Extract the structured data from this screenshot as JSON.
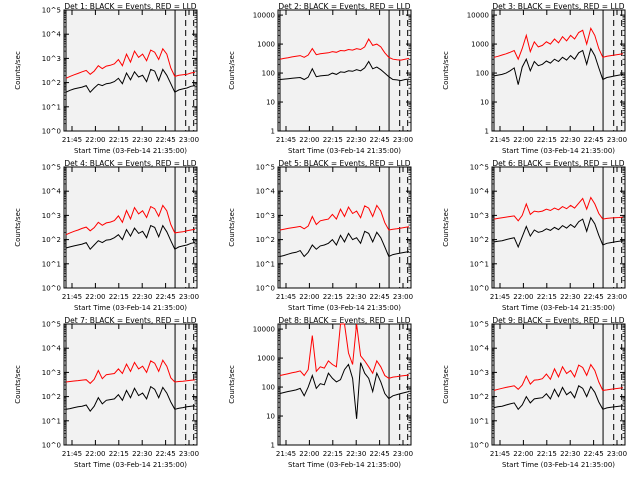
{
  "chart_data": [
    {
      "type": "line",
      "title": "Det 1: BLACK = Events, RED = LLD",
      "ylabel": "Counts/sec",
      "xlabel": "Start Time (03-Feb-14 21:35:00)",
      "xticks": [
        "21:45",
        "22:00",
        "22:15",
        "22:30",
        "22:45",
        "23:00"
      ],
      "yticks": [
        "10^0",
        "10^1",
        "10^2",
        "10^3",
        "10^4",
        "10^5"
      ],
      "ylim": [
        1,
        100000
      ],
      "yscale": "log",
      "series": [
        {
          "name": "Events",
          "color": "#000000",
          "values": [
            40,
            48,
            55,
            60,
            65,
            75,
            40,
            60,
            85,
            75,
            90,
            95,
            110,
            150,
            90,
            250,
            130,
            280,
            170,
            200,
            110,
            350,
            300,
            120,
            350,
            200,
            90,
            40,
            50,
            55,
            60,
            70,
            75
          ]
        },
        {
          "name": "LLD",
          "color": "#ff0000",
          "values": [
            150,
            180,
            210,
            240,
            280,
            320,
            220,
            300,
            500,
            380,
            480,
            520,
            600,
            900,
            500,
            1500,
            700,
            2000,
            1100,
            1500,
            800,
            2200,
            1800,
            900,
            2500,
            1500,
            400,
            180,
            200,
            210,
            220,
            250,
            270
          ]
        }
      ]
    },
    {
      "type": "line",
      "title": "Det 2: BLACK = Events, RED = LLD",
      "ylabel": "Counts/sec",
      "xlabel": "Start Time (03-Feb-14 21:35:00)",
      "xticks": [
        "21:45",
        "22:00",
        "22:15",
        "22:30",
        "22:45",
        "23:00"
      ],
      "yticks": [
        "1",
        "10",
        "100",
        "1000",
        "10000"
      ],
      "ylim": [
        1,
        15000
      ],
      "yscale": "log",
      "series": [
        {
          "name": "Events",
          "color": "#000000",
          "values": [
            60,
            62,
            64,
            66,
            68,
            70,
            60,
            72,
            140,
            75,
            80,
            82,
            85,
            100,
            90,
            110,
            105,
            120,
            115,
            130,
            120,
            150,
            250,
            140,
            160,
            130,
            100,
            75,
            60,
            58,
            55,
            60,
            62
          ]
        },
        {
          "name": "LLD",
          "color": "#ff0000",
          "values": [
            300,
            320,
            340,
            360,
            380,
            400,
            350,
            420,
            700,
            430,
            460,
            480,
            500,
            550,
            520,
            600,
            580,
            650,
            620,
            700,
            650,
            800,
            1500,
            900,
            1000,
            800,
            500,
            350,
            300,
            290,
            280,
            300,
            320
          ]
        }
      ]
    },
    {
      "type": "line",
      "title": "Det 3: BLACK = Events, RED = LLD",
      "ylabel": "Counts/sec",
      "xlabel": "Start Time (03-Feb-14 21:35:00)",
      "xticks": [
        "21:45",
        "22:00",
        "22:15",
        "22:30",
        "22:45",
        "23:00"
      ],
      "yticks": [
        "1",
        "10",
        "100",
        "1000",
        "10000"
      ],
      "ylim": [
        1,
        15000
      ],
      "yscale": "log",
      "series": [
        {
          "name": "Events",
          "color": "#000000",
          "values": [
            80,
            85,
            90,
            100,
            120,
            150,
            40,
            160,
            300,
            120,
            250,
            180,
            200,
            260,
            220,
            300,
            250,
            350,
            280,
            400,
            300,
            500,
            600,
            200,
            700,
            400,
            150,
            60,
            70,
            75,
            80,
            85,
            90
          ]
        },
        {
          "name": "LLD",
          "color": "#ff0000",
          "values": [
            350,
            380,
            420,
            460,
            520,
            600,
            300,
            700,
            2000,
            550,
            1200,
            800,
            900,
            1200,
            1000,
            1500,
            1100,
            1800,
            1300,
            2000,
            1500,
            2500,
            3000,
            1000,
            3500,
            2000,
            700,
            350,
            380,
            400,
            420,
            440,
            460
          ]
        }
      ]
    },
    {
      "type": "line",
      "title": "Det 4: BLACK = Events, RED = LLD",
      "ylabel": "Counts/sec",
      "xlabel": "Start Time (03-Feb-14 21:35:00)",
      "xticks": [
        "21:45",
        "22:00",
        "22:15",
        "22:30",
        "22:45",
        "23:00"
      ],
      "yticks": [
        "10^0",
        "10^1",
        "10^2",
        "10^3",
        "10^4",
        "10^5"
      ],
      "ylim": [
        1,
        100000
      ],
      "yscale": "log",
      "series": [
        {
          "name": "Events",
          "color": "#000000",
          "values": [
            45,
            50,
            55,
            60,
            65,
            75,
            40,
            60,
            90,
            75,
            95,
            100,
            120,
            160,
            100,
            260,
            140,
            300,
            180,
            220,
            120,
            380,
            320,
            130,
            380,
            210,
            90,
            40,
            50,
            55,
            60,
            70,
            75
          ]
        },
        {
          "name": "LLD",
          "color": "#ff0000",
          "values": [
            160,
            190,
            220,
            250,
            290,
            330,
            230,
            310,
            520,
            390,
            490,
            530,
            610,
            950,
            520,
            1600,
            720,
            2100,
            1150,
            1550,
            820,
            2300,
            1900,
            920,
            2600,
            1550,
            420,
            190,
            200,
            210,
            230,
            250,
            270
          ]
        }
      ]
    },
    {
      "type": "line",
      "title": "Det 5: BLACK = Events, RED = LLD",
      "ylabel": "Counts/sec",
      "xlabel": "Start Time (03-Feb-14 21:35:00)",
      "xticks": [
        "21:45",
        "22:00",
        "22:15",
        "22:30",
        "22:45",
        "23:00"
      ],
      "yticks": [
        "10^0",
        "10^1",
        "10^2",
        "10^3",
        "10^4",
        "10^5"
      ],
      "ylim": [
        1,
        100000
      ],
      "yscale": "log",
      "series": [
        {
          "name": "Events",
          "color": "#000000",
          "values": [
            20,
            22,
            25,
            28,
            30,
            35,
            20,
            30,
            60,
            40,
            55,
            60,
            70,
            100,
            60,
            150,
            80,
            180,
            100,
            120,
            70,
            220,
            180,
            80,
            200,
            120,
            50,
            20,
            24,
            26,
            28,
            30,
            32
          ]
        },
        {
          "name": "LLD",
          "color": "#ff0000",
          "values": [
            250,
            270,
            290,
            310,
            330,
            350,
            280,
            360,
            900,
            420,
            600,
            650,
            700,
            1100,
            700,
            1800,
            900,
            2200,
            1200,
            1500,
            800,
            2500,
            2000,
            900,
            2600,
            1500,
            500,
            250,
            270,
            280,
            300,
            320,
            340
          ]
        }
      ]
    },
    {
      "type": "line",
      "title": "Det 6: BLACK = Events, RED = LLD",
      "ylabel": "Counts/sec",
      "xlabel": "Start Time (03-Feb-14 21:35:00)",
      "xticks": [
        "21:45",
        "22:00",
        "22:15",
        "22:30",
        "22:45",
        "23:00"
      ],
      "yticks": [
        "10^0",
        "10^1",
        "10^2",
        "10^3",
        "10^4",
        "10^5"
      ],
      "ylim": [
        1,
        100000
      ],
      "yscale": "log",
      "series": [
        {
          "name": "Events",
          "color": "#000000",
          "values": [
            80,
            85,
            90,
            100,
            110,
            120,
            50,
            130,
            350,
            140,
            250,
            200,
            220,
            280,
            240,
            320,
            260,
            380,
            300,
            420,
            320,
            550,
            700,
            220,
            800,
            450,
            150,
            60,
            70,
            75,
            80,
            85,
            90
          ]
        },
        {
          "name": "LLD",
          "color": "#ff0000",
          "values": [
            700,
            750,
            800,
            850,
            900,
            950,
            600,
            1000,
            3000,
            1100,
            1500,
            1400,
            1500,
            1800,
            1600,
            2000,
            1700,
            2300,
            1900,
            2600,
            2000,
            3200,
            5000,
            1800,
            5500,
            3000,
            1200,
            700,
            750,
            780,
            800,
            820,
            850
          ]
        }
      ]
    },
    {
      "type": "line",
      "title": "Det 7: BLACK = Events, RED = LLD",
      "ylabel": "Counts/sec",
      "xlabel": "Start Time (03-Feb-14 21:35:00)",
      "xticks": [
        "21:45",
        "22:00",
        "22:15",
        "22:30",
        "22:45",
        "23:00"
      ],
      "yticks": [
        "10^0",
        "10^1",
        "10^2",
        "10^3",
        "10^4",
        "10^5"
      ],
      "ylim": [
        1,
        100000
      ],
      "yscale": "log",
      "series": [
        {
          "name": "Events",
          "color": "#000000",
          "values": [
            30,
            32,
            35,
            38,
            40,
            45,
            25,
            40,
            90,
            50,
            70,
            75,
            80,
            120,
            70,
            180,
            90,
            220,
            110,
            140,
            80,
            260,
            200,
            90,
            240,
            140,
            60,
            30,
            33,
            35,
            38,
            40,
            42
          ]
        },
        {
          "name": "LLD",
          "color": "#ff0000",
          "values": [
            400,
            420,
            440,
            460,
            480,
            500,
            350,
            520,
            1200,
            550,
            800,
            850,
            900,
            1400,
            900,
            2200,
            1100,
            2600,
            1400,
            1800,
            1000,
            3000,
            2400,
            1100,
            3200,
            1800,
            600,
            400,
            420,
            430,
            450,
            470,
            490
          ]
        }
      ]
    },
    {
      "type": "line",
      "title": "Det 8: BLACK = Events, RED = LLD",
      "ylabel": "Counts/sec",
      "xlabel": "Start Time (03-Feb-14 21:35:00)",
      "xticks": [
        "21:45",
        "22:00",
        "22:15",
        "22:30",
        "22:45",
        "23:00"
      ],
      "yticks": [
        "1",
        "10",
        "100",
        "1000",
        "10000"
      ],
      "ylim": [
        1,
        15000
      ],
      "yscale": "log",
      "series": [
        {
          "name": "Events",
          "color": "#000000",
          "values": [
            60,
            65,
            70,
            75,
            80,
            90,
            50,
            100,
            250,
            90,
            130,
            120,
            300,
            200,
            150,
            180,
            400,
            600,
            200,
            8,
            700,
            300,
            200,
            70,
            300,
            150,
            60,
            40,
            50,
            55,
            60,
            65,
            70
          ]
        },
        {
          "name": "LLD",
          "color": "#ff0000",
          "values": [
            250,
            270,
            290,
            310,
            330,
            360,
            250,
            400,
            6000,
            350,
            500,
            450,
            800,
            600,
            500,
            15000,
            15000,
            1500,
            600,
            15000,
            1200,
            800,
            500,
            300,
            800,
            500,
            250,
            200,
            220,
            230,
            240,
            250,
            260
          ]
        }
      ]
    },
    {
      "type": "line",
      "title": "Det 9: BLACK = Events, RED = LLD",
      "ylabel": "Counts/sec",
      "xlabel": "Start Time (03-Feb-14 21:35:00)",
      "xticks": [
        "21:45",
        "22:00",
        "22:15",
        "22:30",
        "22:45",
        "23:00"
      ],
      "yticks": [
        "10^0",
        "10^1",
        "10^2",
        "10^3",
        "10^4",
        "10^5"
      ],
      "ylim": [
        1,
        100000
      ],
      "yscale": "log",
      "series": [
        {
          "name": "Events",
          "color": "#000000",
          "values": [
            35,
            38,
            40,
            45,
            50,
            55,
            30,
            45,
            100,
            55,
            80,
            85,
            90,
            130,
            80,
            200,
            100,
            240,
            120,
            160,
            90,
            280,
            220,
            100,
            260,
            150,
            60,
            30,
            34,
            36,
            38,
            40,
            42
          ]
        },
        {
          "name": "LLD",
          "color": "#ff0000",
          "values": [
            180,
            200,
            220,
            240,
            260,
            280,
            200,
            300,
            700,
            330,
            480,
            500,
            550,
            850,
            520,
            1400,
            650,
            1700,
            900,
            1200,
            650,
            2000,
            1600,
            750,
            2100,
            1200,
            400,
            180,
            190,
            200,
            210,
            220,
            230
          ]
        }
      ]
    }
  ]
}
